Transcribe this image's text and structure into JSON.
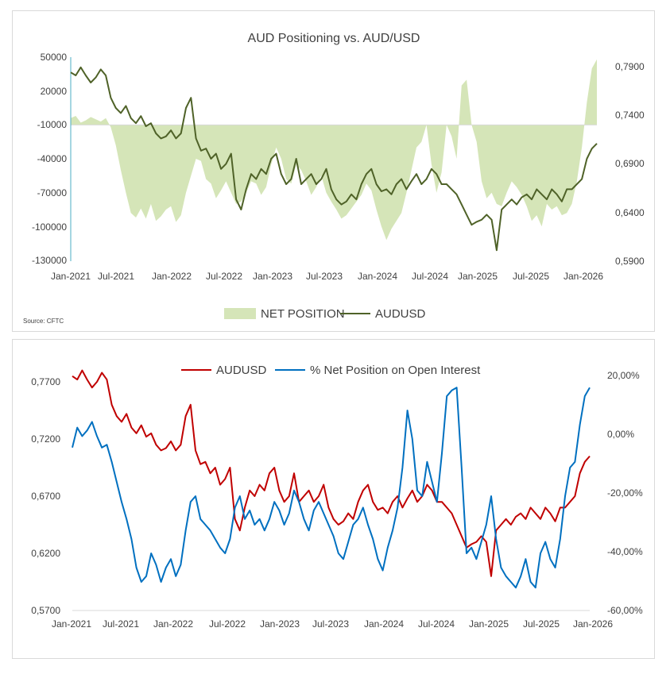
{
  "chart_data": [
    {
      "type": "area+line",
      "title": "AUD Positioning vs. AUD/USD",
      "source": "Source: CFTC",
      "x_ticks": [
        "Jan-2021",
        "Jul-2021",
        "Jan-2022",
        "Jul-2022",
        "Jan-2023",
        "Jul-2023",
        "Jan-2024",
        "Jul-2024",
        "Jan-2025",
        "Jul-2025",
        "Jan-2026"
      ],
      "y_left": {
        "ticks": [
          "50000",
          "20000",
          "-10000",
          "-40000",
          "-70000",
          "-100000",
          "-130000"
        ],
        "ylim": [
          -130000,
          50000
        ]
      },
      "y_right": {
        "ticks": [
          "0,7900",
          "0,7400",
          "0,6900",
          "0,6400",
          "0,5900"
        ],
        "ylim": [
          0.59,
          0.79
        ]
      },
      "colors": {
        "area": "#d5e5b8",
        "line": "#4f6228"
      },
      "series": [
        {
          "name": "NET POSITION",
          "kind": "area",
          "axis": "left",
          "x": [
            2021.0,
            2021.05,
            2021.1,
            2021.15,
            2021.2,
            2021.25,
            2021.3,
            2021.35,
            2021.4,
            2021.45,
            2021.5,
            2021.55,
            2021.6,
            2021.65,
            2021.7,
            2021.75,
            2021.8,
            2021.85,
            2021.9,
            2021.95,
            2022.0,
            2022.05,
            2022.1,
            2022.15,
            2022.2,
            2022.25,
            2022.3,
            2022.35,
            2022.4,
            2022.45,
            2022.5,
            2022.55,
            2022.6,
            2022.65,
            2022.7,
            2022.75,
            2022.8,
            2022.85,
            2022.9,
            2022.95,
            2023.0,
            2023.05,
            2023.1,
            2023.15,
            2023.2,
            2023.25,
            2023.3,
            2023.35,
            2023.4,
            2023.45,
            2023.5,
            2023.55,
            2023.6,
            2023.65,
            2023.7,
            2023.75,
            2023.8,
            2023.85,
            2023.9,
            2023.95,
            2024.0,
            2024.05,
            2024.1,
            2024.15,
            2024.2,
            2024.25,
            2024.3,
            2024.35,
            2024.4,
            2024.45,
            2024.5,
            2024.55,
            2024.6,
            2024.65,
            2024.7,
            2024.75,
            2024.8,
            2024.85,
            2024.9,
            2024.95,
            2025.0,
            2025.05,
            2025.1,
            2025.15,
            2025.2,
            2025.25,
            2025.3,
            2025.35,
            2025.4,
            2025.45,
            2025.5,
            2025.55,
            2025.6,
            2025.65,
            2025.7,
            2025.75,
            2025.8,
            2025.85,
            2025.9,
            2025.95,
            2026.0,
            2026.05,
            2026.1,
            2026.15,
            2026.2,
            2026.25
          ],
          "values": [
            -4000,
            -2000,
            -8000,
            -6000,
            -3000,
            -5000,
            -7000,
            -4000,
            -12000,
            -28000,
            -50000,
            -70000,
            -88000,
            -92000,
            -84000,
            -93000,
            -80000,
            -95000,
            -91000,
            -85000,
            -82000,
            -96000,
            -90000,
            -70000,
            -55000,
            -40000,
            -42000,
            -58000,
            -62000,
            -75000,
            -68000,
            -60000,
            -70000,
            -80000,
            -78000,
            -70000,
            -60000,
            -62000,
            -72000,
            -65000,
            -45000,
            -30000,
            -40000,
            -58000,
            -62000,
            -45000,
            -50000,
            -60000,
            -72000,
            -65000,
            -55000,
            -70000,
            -78000,
            -85000,
            -93000,
            -90000,
            -84000,
            -78000,
            -72000,
            -62000,
            -68000,
            -85000,
            -100000,
            -112000,
            -102000,
            -95000,
            -88000,
            -70000,
            -50000,
            -30000,
            -25000,
            -10000,
            -45000,
            -70000,
            -52000,
            -10000,
            -20000,
            -40000,
            25000,
            30000,
            -10000,
            -25000,
            -60000,
            -75000,
            -70000,
            -80000,
            -82000,
            -70000,
            -60000,
            -65000,
            -72000,
            -82000,
            -95000,
            -90000,
            -100000,
            -80000,
            -85000,
            -82000,
            -90000,
            -88000,
            -80000,
            -60000,
            -30000,
            10000,
            40000,
            48000
          ]
        },
        {
          "name": "AUDUSD",
          "kind": "line",
          "axis": "right",
          "x": [
            2021.0,
            2021.05,
            2021.1,
            2021.15,
            2021.2,
            2021.25,
            2021.3,
            2021.35,
            2021.4,
            2021.45,
            2021.5,
            2021.55,
            2021.6,
            2021.65,
            2021.7,
            2021.75,
            2021.8,
            2021.85,
            2021.9,
            2021.95,
            2022.0,
            2022.05,
            2022.1,
            2022.15,
            2022.2,
            2022.25,
            2022.3,
            2022.35,
            2022.4,
            2022.45,
            2022.5,
            2022.55,
            2022.6,
            2022.65,
            2022.7,
            2022.75,
            2022.8,
            2022.85,
            2022.9,
            2022.95,
            2023.0,
            2023.05,
            2023.1,
            2023.15,
            2023.2,
            2023.25,
            2023.3,
            2023.35,
            2023.4,
            2023.45,
            2023.5,
            2023.55,
            2023.6,
            2023.65,
            2023.7,
            2023.75,
            2023.8,
            2023.85,
            2023.9,
            2023.95,
            2024.0,
            2024.05,
            2024.1,
            2024.15,
            2024.2,
            2024.25,
            2024.3,
            2024.35,
            2024.4,
            2024.45,
            2024.5,
            2024.55,
            2024.6,
            2024.65,
            2024.7,
            2024.75,
            2024.8,
            2024.85,
            2024.9,
            2024.95,
            2025.0,
            2025.05,
            2025.1,
            2025.15,
            2025.2,
            2025.25,
            2025.3,
            2025.35,
            2025.4,
            2025.45,
            2025.5,
            2025.55,
            2025.6,
            2025.65,
            2025.7,
            2025.75,
            2025.8,
            2025.85,
            2025.9,
            2025.95,
            2026.0,
            2026.05,
            2026.1,
            2026.15,
            2026.2,
            2026.25
          ],
          "values": [
            0.775,
            0.772,
            0.78,
            0.772,
            0.765,
            0.77,
            0.778,
            0.772,
            0.75,
            0.74,
            0.735,
            0.742,
            0.73,
            0.725,
            0.732,
            0.722,
            0.725,
            0.715,
            0.71,
            0.712,
            0.718,
            0.71,
            0.715,
            0.74,
            0.75,
            0.71,
            0.698,
            0.7,
            0.69,
            0.695,
            0.68,
            0.685,
            0.695,
            0.65,
            0.64,
            0.66,
            0.675,
            0.67,
            0.68,
            0.675,
            0.69,
            0.695,
            0.675,
            0.665,
            0.67,
            0.69,
            0.665,
            0.67,
            0.675,
            0.665,
            0.67,
            0.68,
            0.66,
            0.65,
            0.645,
            0.648,
            0.655,
            0.65,
            0.665,
            0.675,
            0.68,
            0.665,
            0.658,
            0.66,
            0.655,
            0.665,
            0.67,
            0.66,
            0.668,
            0.675,
            0.665,
            0.67,
            0.68,
            0.675,
            0.665,
            0.665,
            0.66,
            0.655,
            0.645,
            0.635,
            0.625,
            0.628,
            0.63,
            0.635,
            0.63,
            0.6,
            0.64,
            0.645,
            0.65,
            0.645,
            0.652,
            0.655,
            0.65,
            0.66,
            0.655,
            0.65,
            0.66,
            0.655,
            0.648,
            0.66,
            0.66,
            0.665,
            0.67,
            0.69,
            0.7,
            0.705
          ]
        }
      ],
      "legend": [
        "NET POSITION",
        "AUDUSD"
      ],
      "legend_position": "bottom"
    },
    {
      "type": "line",
      "title": "",
      "x_ticks": [
        "Jan-2021",
        "Jul-2021",
        "Jan-2022",
        "Jul-2022",
        "Jan-2023",
        "Jul-2023",
        "Jan-2024",
        "Jul-2024",
        "Jan-2025",
        "Jul-2025",
        "Jan-2026"
      ],
      "y_left": {
        "ticks": [
          "0,7700",
          "0,7200",
          "0,6700",
          "0,6200",
          "0,5700"
        ],
        "ylim": [
          0.57,
          0.77
        ]
      },
      "y_right": {
        "ticks": [
          "20,00%",
          "0,00%",
          "-20,00%",
          "-40,00%",
          "-60,00%"
        ],
        "ylim": [
          -60,
          20
        ]
      },
      "colors": {
        "audusd": "#c00000",
        "net_oi": "#0070c0"
      },
      "series": [
        {
          "name": "AUDUSD",
          "axis": "left",
          "x": [
            2021.0,
            2021.05,
            2021.1,
            2021.15,
            2021.2,
            2021.25,
            2021.3,
            2021.35,
            2021.4,
            2021.45,
            2021.5,
            2021.55,
            2021.6,
            2021.65,
            2021.7,
            2021.75,
            2021.8,
            2021.85,
            2021.9,
            2021.95,
            2022.0,
            2022.05,
            2022.1,
            2022.15,
            2022.2,
            2022.25,
            2022.3,
            2022.35,
            2022.4,
            2022.45,
            2022.5,
            2022.55,
            2022.6,
            2022.65,
            2022.7,
            2022.75,
            2022.8,
            2022.85,
            2022.9,
            2022.95,
            2023.0,
            2023.05,
            2023.1,
            2023.15,
            2023.2,
            2023.25,
            2023.3,
            2023.35,
            2023.4,
            2023.45,
            2023.5,
            2023.55,
            2023.6,
            2023.65,
            2023.7,
            2023.75,
            2023.8,
            2023.85,
            2023.9,
            2023.95,
            2024.0,
            2024.05,
            2024.1,
            2024.15,
            2024.2,
            2024.25,
            2024.3,
            2024.35,
            2024.4,
            2024.45,
            2024.5,
            2024.55,
            2024.6,
            2024.65,
            2024.7,
            2024.75,
            2024.8,
            2024.85,
            2024.9,
            2024.95,
            2025.0,
            2025.05,
            2025.1,
            2025.15,
            2025.2,
            2025.25,
            2025.3,
            2025.35,
            2025.4,
            2025.45,
            2025.5,
            2025.55,
            2025.6,
            2025.65,
            2025.7,
            2025.75,
            2025.8,
            2025.85,
            2025.9,
            2025.95,
            2026.0,
            2026.05,
            2026.1,
            2026.15,
            2026.2,
            2026.25
          ],
          "values": [
            0.775,
            0.772,
            0.78,
            0.772,
            0.765,
            0.77,
            0.778,
            0.772,
            0.75,
            0.74,
            0.735,
            0.742,
            0.73,
            0.725,
            0.732,
            0.722,
            0.725,
            0.715,
            0.71,
            0.712,
            0.718,
            0.71,
            0.715,
            0.74,
            0.75,
            0.71,
            0.698,
            0.7,
            0.69,
            0.695,
            0.68,
            0.685,
            0.695,
            0.65,
            0.64,
            0.66,
            0.675,
            0.67,
            0.68,
            0.675,
            0.69,
            0.695,
            0.675,
            0.665,
            0.67,
            0.69,
            0.665,
            0.67,
            0.675,
            0.665,
            0.67,
            0.68,
            0.66,
            0.65,
            0.645,
            0.648,
            0.655,
            0.65,
            0.665,
            0.675,
            0.68,
            0.665,
            0.658,
            0.66,
            0.655,
            0.665,
            0.67,
            0.66,
            0.668,
            0.675,
            0.665,
            0.67,
            0.68,
            0.675,
            0.665,
            0.665,
            0.66,
            0.655,
            0.645,
            0.635,
            0.625,
            0.628,
            0.63,
            0.635,
            0.63,
            0.6,
            0.64,
            0.645,
            0.65,
            0.645,
            0.652,
            0.655,
            0.65,
            0.66,
            0.655,
            0.65,
            0.66,
            0.655,
            0.648,
            0.66,
            0.66,
            0.665,
            0.67,
            0.69,
            0.7,
            0.705
          ]
        },
        {
          "name": "% Net Position on Open Interest",
          "axis": "right",
          "x": [
            2021.0,
            2021.05,
            2021.1,
            2021.15,
            2021.2,
            2021.25,
            2021.3,
            2021.35,
            2021.4,
            2021.45,
            2021.5,
            2021.55,
            2021.6,
            2021.65,
            2021.7,
            2021.75,
            2021.8,
            2021.85,
            2021.9,
            2021.95,
            2022.0,
            2022.05,
            2022.1,
            2022.15,
            2022.2,
            2022.25,
            2022.3,
            2022.35,
            2022.4,
            2022.45,
            2022.5,
            2022.55,
            2022.6,
            2022.65,
            2022.7,
            2022.75,
            2022.8,
            2022.85,
            2022.9,
            2022.95,
            2023.0,
            2023.05,
            2023.1,
            2023.15,
            2023.2,
            2023.25,
            2023.3,
            2023.35,
            2023.4,
            2023.45,
            2023.5,
            2023.55,
            2023.6,
            2023.65,
            2023.7,
            2023.75,
            2023.8,
            2023.85,
            2023.9,
            2023.95,
            2024.0,
            2024.05,
            2024.1,
            2024.15,
            2024.2,
            2024.25,
            2024.3,
            2024.35,
            2024.4,
            2024.45,
            2024.5,
            2024.55,
            2024.6,
            2024.65,
            2024.7,
            2024.75,
            2024.8,
            2024.85,
            2024.9,
            2024.95,
            2025.0,
            2025.05,
            2025.1,
            2025.15,
            2025.2,
            2025.25,
            2025.3,
            2025.35,
            2025.4,
            2025.45,
            2025.5,
            2025.55,
            2025.6,
            2025.65,
            2025.7,
            2025.75,
            2025.8,
            2025.85,
            2025.9,
            2025.95,
            2026.0,
            2026.05,
            2026.1,
            2026.15,
            2026.2,
            2026.25
          ],
          "values": [
            -3,
            4,
            1,
            3,
            6,
            1,
            -3,
            -2,
            -8,
            -15,
            -22,
            -28,
            -35,
            -45,
            -50,
            -48,
            -40,
            -44,
            -50,
            -45,
            -42,
            -48,
            -44,
            -32,
            -22,
            -20,
            -28,
            -30,
            -32,
            -35,
            -38,
            -40,
            -35,
            -24,
            -20,
            -28,
            -25,
            -30,
            -28,
            -32,
            -28,
            -22,
            -25,
            -30,
            -26,
            -18,
            -22,
            -28,
            -32,
            -25,
            -22,
            -26,
            -30,
            -34,
            -40,
            -42,
            -36,
            -30,
            -28,
            -24,
            -30,
            -35,
            -42,
            -46,
            -38,
            -32,
            -24,
            -10,
            10,
            0,
            -18,
            -20,
            -8,
            -15,
            -22,
            -5,
            15,
            17,
            18,
            -10,
            -40,
            -38,
            -42,
            -36,
            -30,
            -20,
            -35,
            -45,
            -48,
            -50,
            -52,
            -48,
            -42,
            -50,
            -52,
            -40,
            -36,
            -42,
            -45,
            -35,
            -20,
            -10,
            -8,
            5,
            15,
            18
          ]
        }
      ],
      "legend": [
        "AUDUSD",
        "% Net Position on Open Interest"
      ],
      "legend_position": "top"
    }
  ]
}
